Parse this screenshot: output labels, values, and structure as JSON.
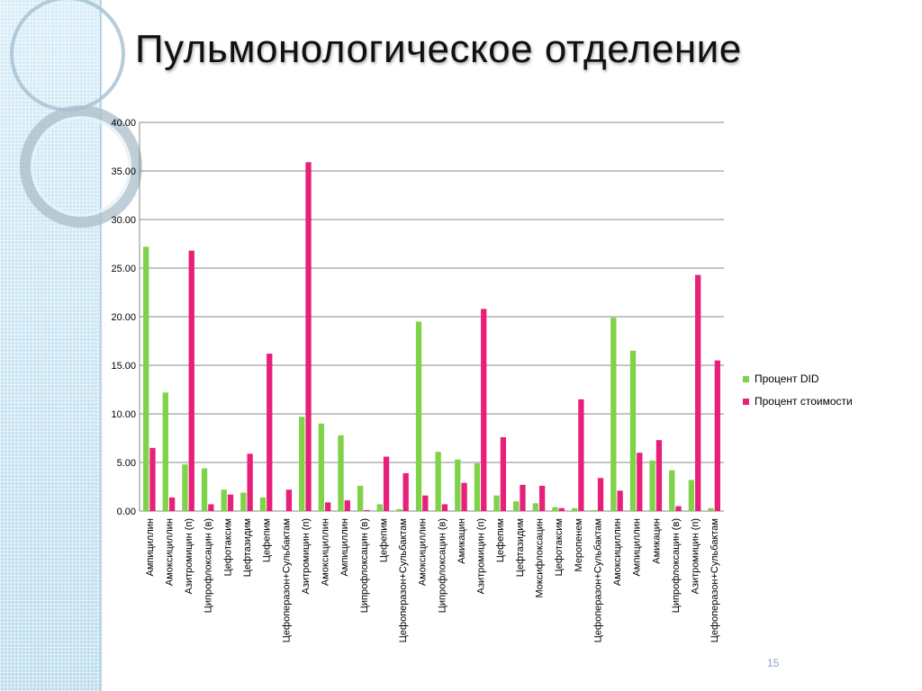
{
  "slide": {
    "title": "Пульмонологическое отделение",
    "page_number": "15"
  },
  "colors": {
    "did": "#7ED348",
    "cost": "#E8207A",
    "grid": "#888888",
    "panel": "#cfe7f4"
  },
  "chart_data": {
    "type": "bar",
    "title": "",
    "xlabel": "",
    "ylabel": "",
    "ylim": [
      0,
      40
    ],
    "y_ticks": [
      "0.00",
      "5.00",
      "10.00",
      "15.00",
      "20.00",
      "25.00",
      "30.00",
      "35.00",
      "40.00"
    ],
    "grid": true,
    "legend_position": "right",
    "categories": [
      "Ампициллин",
      "Амоксициллин",
      "Азитромицин (п)",
      "Ципрофлоксацин (в)",
      "Цефотаксим",
      "Цефтазидим",
      "Цефепим",
      "Цефоперазон+Сульбактам",
      "Азитромицин (п)",
      "Амоксициллин",
      "Ампициллин",
      "Ципрофлоксацин (в)",
      "Цефепим",
      "Цефоперазон+Сульбактам",
      "Амоксициллин",
      "Ципрофлоксацин (в)",
      "Амикацин",
      "Азитромицин (п)",
      "Цефепим",
      "Цефтазидим",
      "Моксифлоксацин",
      "Цефотаксим",
      "Меропенем",
      "Цефоперазон+Сульбактам",
      "Амоксициллин",
      "Ампициллин",
      "Амикацин",
      "Ципрофлоксацин (в)",
      "Азитромицин (п)",
      "Цефоперазон+Сульбактам"
    ],
    "series": [
      {
        "name": "Процент DID",
        "values": [
          27.2,
          12.2,
          4.8,
          4.4,
          2.2,
          1.9,
          1.4,
          0.0,
          9.7,
          9.0,
          7.8,
          2.6,
          0.7,
          0.2,
          19.5,
          6.1,
          5.3,
          4.9,
          1.6,
          1.0,
          0.8,
          0.4,
          0.3,
          0.1,
          19.9,
          16.5,
          5.2,
          4.2,
          3.2,
          0.3
        ]
      },
      {
        "name": "Процент стоимости",
        "values": [
          6.5,
          1.4,
          26.8,
          0.7,
          1.7,
          5.9,
          16.2,
          2.2,
          35.9,
          0.9,
          1.1,
          0.1,
          5.6,
          3.9,
          1.6,
          0.7,
          2.9,
          20.8,
          7.6,
          2.7,
          2.6,
          0.3,
          11.5,
          3.4,
          2.1,
          6.0,
          7.3,
          0.5,
          24.3,
          15.5
        ]
      }
    ]
  }
}
